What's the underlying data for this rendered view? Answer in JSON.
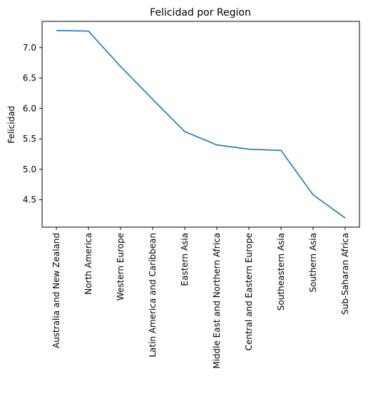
{
  "chart_data": {
    "type": "line",
    "title": "Felicidad por Region",
    "xlabel": "",
    "ylabel": "Felicidad",
    "categories": [
      "Australia and New Zealand",
      "North America",
      "Western Europe",
      "Latin America and Caribbean",
      "Eastern Asia",
      "Middle East and Northern Africa",
      "Central and Eastern Europe",
      "Southeastern Asia",
      "Southern Asia",
      "Sub-Saharan Africa"
    ],
    "values": [
      7.28,
      7.27,
      6.69,
      6.15,
      5.62,
      5.4,
      5.33,
      5.31,
      4.58,
      4.2
    ],
    "ylim": [
      4.05,
      7.43
    ],
    "yticks": [
      "4.5",
      "5.0",
      "5.5",
      "6.0",
      "6.5",
      "7.0"
    ],
    "line_color": "#1f77b4",
    "grid": false,
    "legend": "none"
  }
}
